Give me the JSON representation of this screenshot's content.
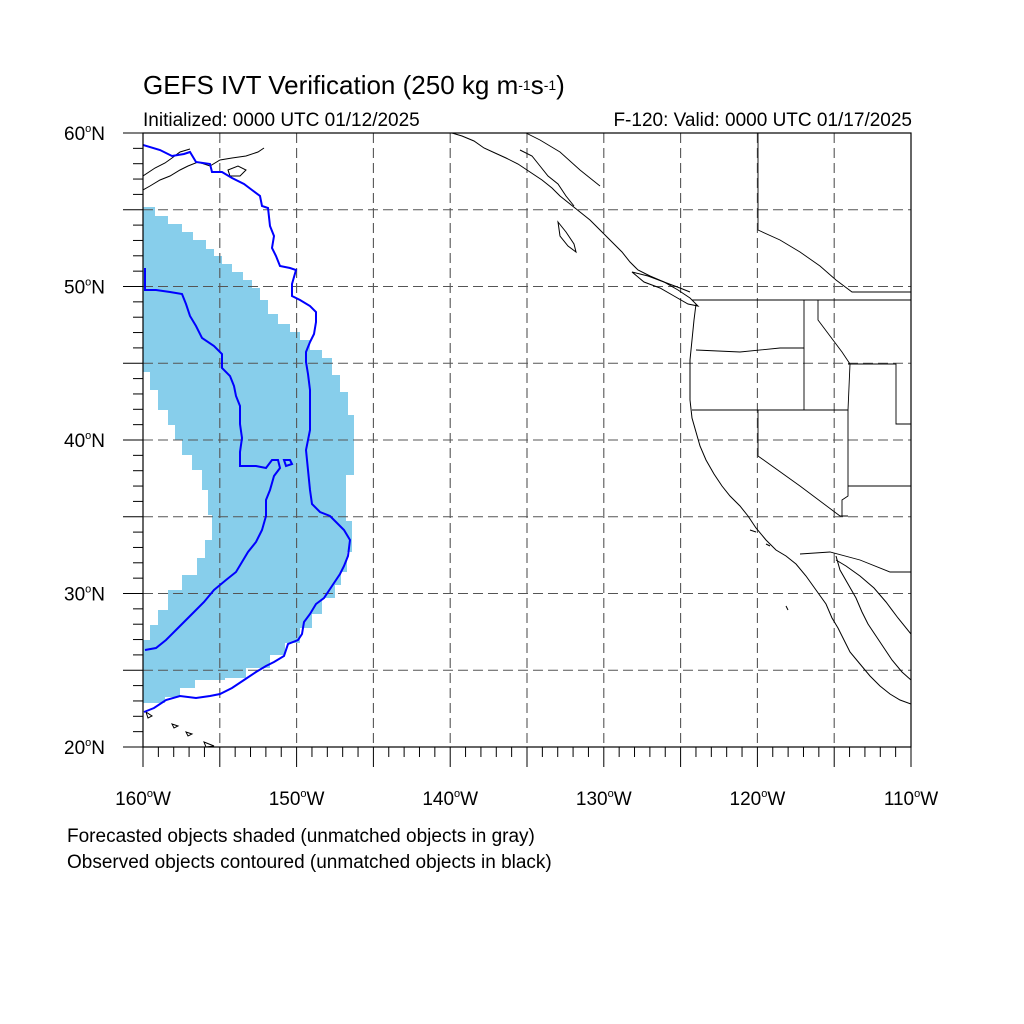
{
  "title": {
    "main": "GEFS IVT Verification (250 kg m",
    "sup1": "-1",
    "mid": "s",
    "sup2": "-1",
    "end": ")"
  },
  "init_text": "Initialized: 0000 UTC 01/12/2025",
  "valid_text": "F-120: Valid: 0000 UTC 01/17/2025",
  "notes": [
    "Forecasted objects shaded (unmatched objects in gray)",
    "Observed objects contoured (unmatched objects in black)"
  ],
  "map": {
    "lon_range": [
      -160,
      -110
    ],
    "lat_range": [
      20,
      60
    ],
    "lat_labels": [
      {
        "num": "60",
        "deg": "o",
        "hemi": "N"
      },
      {
        "num": "50",
        "deg": "o",
        "hemi": "N"
      },
      {
        "num": "40",
        "deg": "o",
        "hemi": "N"
      },
      {
        "num": "30",
        "deg": "o",
        "hemi": "N"
      },
      {
        "num": "20",
        "deg": "o",
        "hemi": "N"
      }
    ],
    "lon_labels": [
      {
        "num": "160",
        "deg": "o",
        "hemi": "W"
      },
      {
        "num": "150",
        "deg": "o",
        "hemi": "W"
      },
      {
        "num": "140",
        "deg": "o",
        "hemi": "W"
      },
      {
        "num": "130",
        "deg": "o",
        "hemi": "W"
      },
      {
        "num": "120",
        "deg": "o",
        "hemi": "W"
      },
      {
        "num": "110",
        "deg": "o",
        "hemi": "W"
      }
    ],
    "grid_spacing_deg": 5,
    "forecast_shade_color": "#87ceeb",
    "observed_contour_color": "#0000ff",
    "coastline_color": "#000000"
  }
}
